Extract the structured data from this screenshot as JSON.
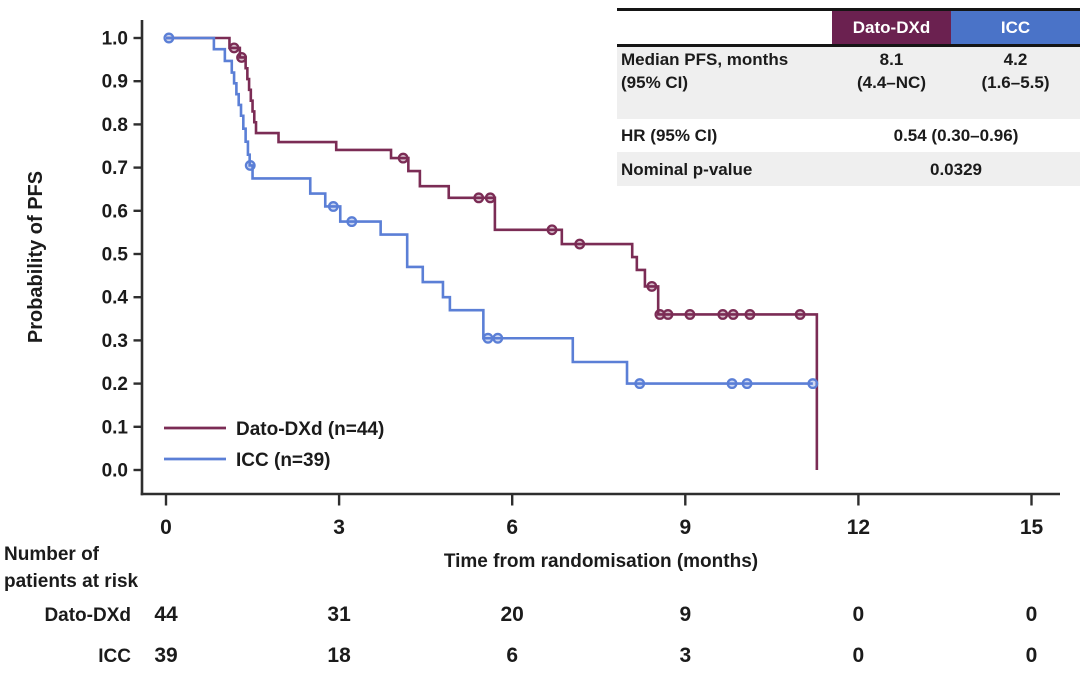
{
  "colors": {
    "dato_curve": "#7b2c55",
    "icc_curve": "#5b7fd6",
    "dato_header_bg": "#6b2150",
    "icc_header_bg": "#4a73c8",
    "shaded_row_bg": "#efefef",
    "axis": "#2e2e2e",
    "text": "#1b1b1b"
  },
  "stats_table": {
    "header": {
      "dato": "Dato-DXd",
      "icc": "ICC"
    },
    "rows": [
      {
        "label": "Median PFS, months",
        "label2": "(95% CI)",
        "dato": "8.1",
        "dato2": "(4.4–NC)",
        "icc": "4.2",
        "icc2": "(1.6–5.5)"
      },
      {
        "label": "HR (95% CI)",
        "value": "0.54 (0.30–0.96)"
      },
      {
        "label": "Nominal p-value",
        "value": "0.0329"
      }
    ]
  },
  "risk_table": {
    "title_line1": "Number of",
    "title_line2": "patients at risk",
    "times": [
      0,
      3,
      6,
      9,
      12,
      15
    ],
    "rows": [
      {
        "name": "Dato-DXd",
        "counts": [
          "44",
          "31",
          "20",
          "9",
          "0",
          "0"
        ]
      },
      {
        "name": "ICC",
        "counts": [
          "39",
          "18",
          "6",
          "3",
          "0",
          "0"
        ]
      }
    ]
  },
  "chart_data": {
    "type": "line",
    "subtype": "kaplan-meier-step",
    "title": "",
    "xlabel": "Time from randomisation (months)",
    "ylabel": "Probability of PFS",
    "xlim": [
      0,
      15
    ],
    "ylim": [
      0.0,
      1.0
    ],
    "x_ticks": [
      0,
      3,
      6,
      9,
      12,
      15
    ],
    "y_tick_step": 0.1,
    "grid": false,
    "legend_position": "lower-left",
    "legend": [
      {
        "label": "Dato-DXd (n=44)",
        "color": "#7b2c55"
      },
      {
        "label": "ICC (n=39)",
        "color": "#5b7fd6"
      }
    ],
    "series": [
      {
        "name": "Dato-DXd (n=44)",
        "color": "#7b2c55",
        "steps": [
          [
            0,
            1.0
          ],
          [
            1.1,
            0.977
          ],
          [
            1.28,
            0.955
          ],
          [
            1.38,
            0.93
          ],
          [
            1.41,
            0.905
          ],
          [
            1.44,
            0.88
          ],
          [
            1.47,
            0.855
          ],
          [
            1.5,
            0.83
          ],
          [
            1.53,
            0.805
          ],
          [
            1.56,
            0.78
          ],
          [
            1.95,
            0.759
          ],
          [
            2.95,
            0.741
          ],
          [
            3.9,
            0.722
          ],
          [
            4.2,
            0.692
          ],
          [
            4.4,
            0.657
          ],
          [
            4.9,
            0.63
          ],
          [
            5.7,
            0.556
          ],
          [
            6.86,
            0.523
          ],
          [
            8.08,
            0.493
          ],
          [
            8.16,
            0.463
          ],
          [
            8.3,
            0.425
          ],
          [
            8.53,
            0.36
          ],
          [
            11.28,
            0.0
          ]
        ],
        "censors": [
          [
            1.18,
            0.977
          ],
          [
            1.31,
            0.955
          ],
          [
            4.11,
            0.722
          ],
          [
            5.42,
            0.63
          ],
          [
            5.62,
            0.63
          ],
          [
            6.69,
            0.556
          ],
          [
            7.17,
            0.523
          ],
          [
            8.42,
            0.425
          ],
          [
            8.56,
            0.36
          ],
          [
            8.7,
            0.36
          ],
          [
            9.08,
            0.36
          ],
          [
            9.65,
            0.36
          ],
          [
            9.83,
            0.36
          ],
          [
            10.12,
            0.36
          ],
          [
            10.99,
            0.36
          ]
        ],
        "end_time": 11.28,
        "median_months": "8.1"
      },
      {
        "name": "ICC (n=39)",
        "color": "#5b7fd6",
        "steps": [
          [
            0,
            1.0
          ],
          [
            0.83,
            0.974
          ],
          [
            1.02,
            0.947
          ],
          [
            1.14,
            0.92
          ],
          [
            1.18,
            0.895
          ],
          [
            1.22,
            0.87
          ],
          [
            1.26,
            0.845
          ],
          [
            1.3,
            0.82
          ],
          [
            1.34,
            0.79
          ],
          [
            1.38,
            0.76
          ],
          [
            1.42,
            0.73
          ],
          [
            1.45,
            0.705
          ],
          [
            1.5,
            0.675
          ],
          [
            2.5,
            0.64
          ],
          [
            2.76,
            0.61
          ],
          [
            3.02,
            0.575
          ],
          [
            3.72,
            0.545
          ],
          [
            4.18,
            0.47
          ],
          [
            4.45,
            0.435
          ],
          [
            4.8,
            0.4
          ],
          [
            4.92,
            0.37
          ],
          [
            5.5,
            0.305
          ],
          [
            7.05,
            0.25
          ],
          [
            7.99,
            0.2
          ]
        ],
        "censors": [
          [
            0.05,
            1.0
          ],
          [
            1.46,
            0.705
          ],
          [
            2.9,
            0.61
          ],
          [
            3.22,
            0.575
          ],
          [
            5.58,
            0.305
          ],
          [
            5.75,
            0.305
          ],
          [
            8.21,
            0.2
          ],
          [
            9.81,
            0.2
          ],
          [
            10.07,
            0.2
          ],
          [
            11.21,
            0.2
          ]
        ],
        "end_time": 11.21,
        "median_months": "4.2"
      }
    ],
    "at_risk": {
      "times": [
        0,
        3,
        6,
        9,
        12,
        15
      ],
      "groups": [
        {
          "name": "Dato-DXd",
          "counts": [
            44,
            31,
            20,
            9,
            0,
            0
          ]
        },
        {
          "name": "ICC",
          "counts": [
            39,
            18,
            6,
            3,
            0,
            0
          ]
        }
      ]
    }
  }
}
